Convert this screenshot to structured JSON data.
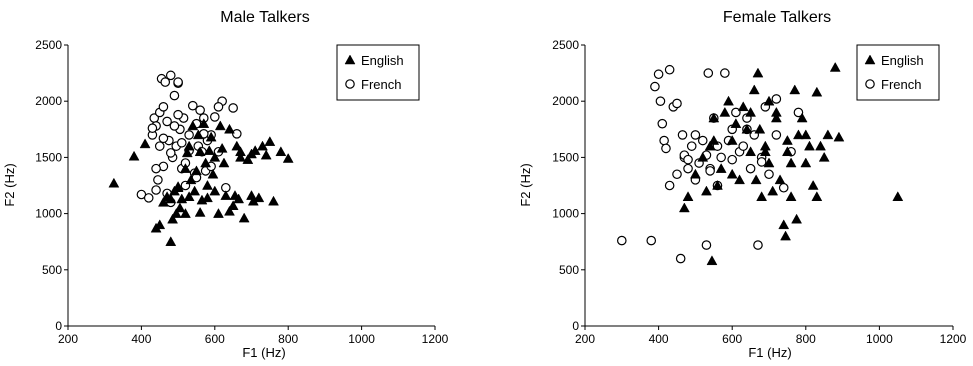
{
  "chart_data": [
    {
      "type": "scatter",
      "title": "Male Talkers",
      "xlabel": "F1 (Hz)",
      "ylabel": "F2 (Hz)",
      "xlim": [
        200,
        1200
      ],
      "ylim": [
        0,
        2500
      ],
      "xticks": [
        200,
        400,
        600,
        800,
        1000,
        1200
      ],
      "yticks": [
        0,
        500,
        1000,
        1500,
        2000,
        2500
      ],
      "grid": false,
      "legend_position": "top-right",
      "series": [
        {
          "name": "English",
          "marker": "triangle",
          "x": [
            325,
            380,
            410,
            440,
            450,
            460,
            470,
            480,
            485,
            490,
            495,
            500,
            505,
            510,
            520,
            525,
            530,
            535,
            540,
            545,
            550,
            555,
            560,
            565,
            570,
            575,
            580,
            585,
            590,
            595,
            600,
            610,
            615,
            620,
            625,
            630,
            640,
            650,
            655,
            660,
            665,
            670,
            680,
            690,
            700,
            705,
            710,
            720,
            730,
            740,
            750,
            760,
            780,
            800,
            520,
            560,
            600,
            640,
            670,
            700,
            500,
            480,
            530,
            580
          ],
          "y": [
            1270,
            1510,
            1620,
            870,
            900,
            1100,
            1150,
            750,
            950,
            1200,
            1000,
            1230,
            1050,
            1130,
            1400,
            1540,
            1600,
            1300,
            1780,
            1200,
            1380,
            1700,
            1550,
            1120,
            1800,
            1450,
            1250,
            1560,
            1680,
            1350,
            1500,
            1000,
            1780,
            1580,
            1450,
            1160,
            1750,
            1070,
            1160,
            1600,
            1130,
            1550,
            960,
            1480,
            1160,
            1110,
            1560,
            1140,
            1600,
            1520,
            1640,
            1110,
            1550,
            1490,
            1000,
            1010,
            1200,
            1020,
            1500,
            1530,
            1240,
            1130,
            1150,
            1140
          ]
        },
        {
          "name": "French",
          "marker": "circle",
          "x": [
            400,
            420,
            430,
            435,
            440,
            445,
            450,
            455,
            460,
            465,
            470,
            475,
            480,
            485,
            490,
            495,
            500,
            505,
            510,
            515,
            520,
            530,
            540,
            545,
            550,
            555,
            560,
            565,
            570,
            575,
            580,
            590,
            600,
            610,
            620,
            630,
            650,
            660,
            460,
            470,
            480,
            500,
            450,
            440,
            430,
            490,
            510,
            530,
            550,
            570,
            590,
            610,
            440,
            460,
            480,
            500,
            520
          ],
          "y": [
            1170,
            1140,
            1700,
            1850,
            1780,
            1300,
            1900,
            2200,
            1950,
            2170,
            1820,
            1650,
            2230,
            1500,
            2050,
            1600,
            2160,
            1750,
            1400,
            1850,
            1250,
            1700,
            1960,
            1360,
            1800,
            1600,
            1920,
            1550,
            1850,
            1380,
            1650,
            1700,
            1860,
            1550,
            2000,
            1230,
            1940,
            1710,
            1420,
            1180,
            1100,
            2170,
            1600,
            1400,
            1760,
            1780,
            1630,
            1560,
            1320,
            1710,
            1420,
            1950,
            1210,
            1670,
            1540,
            1880,
            1450
          ]
        }
      ]
    },
    {
      "type": "scatter",
      "title": "Female Talkers",
      "xlabel": "F1 (Hz)",
      "ylabel": "F2 (Hz)",
      "xlim": [
        200,
        1200
      ],
      "ylim": [
        0,
        2500
      ],
      "xticks": [
        200,
        400,
        600,
        800,
        1000,
        1200
      ],
      "yticks": [
        0,
        500,
        1000,
        1500,
        2000,
        2500
      ],
      "grid": false,
      "legend_position": "top-right",
      "series": [
        {
          "name": "English",
          "marker": "triangle",
          "x": [
            470,
            480,
            500,
            520,
            530,
            540,
            545,
            550,
            560,
            570,
            580,
            590,
            600,
            610,
            620,
            630,
            640,
            650,
            660,
            665,
            670,
            675,
            680,
            690,
            700,
            710,
            720,
            730,
            740,
            745,
            750,
            760,
            770,
            775,
            780,
            790,
            800,
            810,
            820,
            830,
            840,
            850,
            860,
            880,
            890,
            1050,
            550,
            600,
            650,
            700,
            750,
            800,
            830,
            760,
            720,
            690
          ],
          "y": [
            1050,
            1150,
            1350,
            1500,
            1200,
            1600,
            580,
            1850,
            1250,
            1400,
            1900,
            2000,
            1650,
            1800,
            1300,
            1950,
            1750,
            1550,
            2100,
            1300,
            2250,
            1750,
            1150,
            1600,
            1450,
            1200,
            1850,
            1300,
            900,
            800,
            1650,
            1150,
            2100,
            950,
            1700,
            1850,
            1450,
            1600,
            1250,
            2080,
            1600,
            1500,
            1700,
            2300,
            1680,
            1150,
            1650,
            1350,
            1900,
            2000,
            1550,
            1700,
            1150,
            1450,
            1900,
            1550
          ]
        },
        {
          "name": "French",
          "marker": "circle",
          "x": [
            300,
            380,
            390,
            400,
            405,
            410,
            415,
            420,
            430,
            440,
            450,
            460,
            465,
            470,
            480,
            490,
            500,
            510,
            520,
            530,
            535,
            540,
            550,
            560,
            570,
            580,
            590,
            600,
            610,
            620,
            630,
            640,
            650,
            660,
            670,
            680,
            690,
            700,
            720,
            740,
            760,
            780,
            430,
            450,
            470,
            500,
            530,
            560,
            600,
            640,
            680,
            720,
            480,
            540
          ],
          "y": [
            760,
            760,
            2130,
            2240,
            2000,
            1800,
            1650,
            1580,
            2280,
            1950,
            1350,
            600,
            1700,
            1500,
            1400,
            1600,
            1300,
            1450,
            1650,
            720,
            2250,
            1400,
            1850,
            1250,
            1500,
            2250,
            1650,
            1750,
            1900,
            1550,
            1600,
            1850,
            1400,
            1700,
            720,
            1500,
            1950,
            1350,
            1700,
            1230,
            1550,
            1900,
            1250,
            1980,
            1520,
            1700,
            1520,
            1600,
            1480,
            1750,
            1460,
            2020,
            1480,
            1380
          ]
        }
      ]
    }
  ]
}
